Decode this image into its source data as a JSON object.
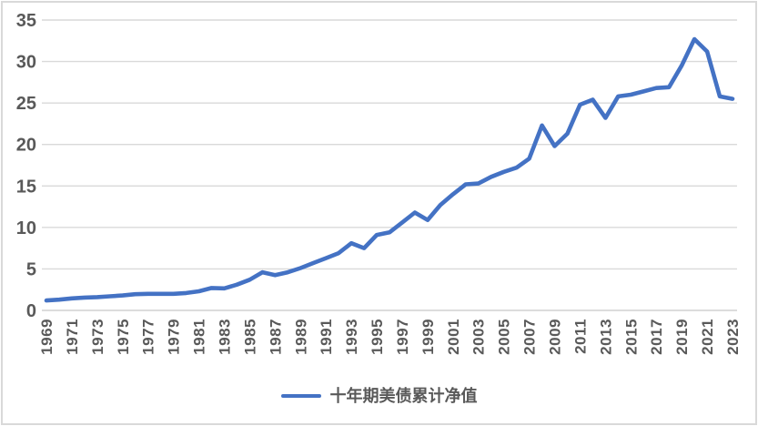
{
  "chart_data": {
    "type": "line",
    "title": "",
    "x": [
      1969,
      1970,
      1971,
      1972,
      1973,
      1974,
      1975,
      1976,
      1977,
      1978,
      1979,
      1980,
      1981,
      1982,
      1983,
      1984,
      1985,
      1986,
      1987,
      1988,
      1989,
      1990,
      1991,
      1992,
      1993,
      1994,
      1995,
      1996,
      1997,
      1998,
      1999,
      2000,
      2001,
      2002,
      2003,
      2004,
      2005,
      2006,
      2007,
      2008,
      2009,
      2010,
      2011,
      2012,
      2013,
      2014,
      2015,
      2016,
      2017,
      2018,
      2019,
      2020,
      2021,
      2022,
      2023
    ],
    "x_tick_labels": [
      "1969",
      "1971",
      "1973",
      "1975",
      "1977",
      "1979",
      "1981",
      "1983",
      "1985",
      "1987",
      "1989",
      "1991",
      "1993",
      "1995",
      "1997",
      "1999",
      "2001",
      "2003",
      "2005",
      "2007",
      "2009",
      "2011",
      "2013",
      "2015",
      "2017",
      "2019",
      "2021",
      "2023"
    ],
    "y_ticks": [
      "0",
      "5",
      "10",
      "15",
      "20",
      "25",
      "30",
      "35"
    ],
    "ylim": [
      0,
      35
    ],
    "grid": "horizontal-only",
    "legend_position": "bottom-center",
    "series": [
      {
        "name": "十年期美债累计净值",
        "values": [
          1.2,
          1.3,
          1.45,
          1.55,
          1.6,
          1.7,
          1.8,
          1.95,
          2.0,
          2.0,
          2.0,
          2.1,
          2.3,
          2.7,
          2.65,
          3.1,
          3.7,
          4.6,
          4.25,
          4.6,
          5.1,
          5.7,
          6.3,
          6.9,
          8.1,
          7.5,
          9.1,
          9.4,
          10.6,
          11.8,
          10.9,
          12.7,
          14.0,
          15.2,
          15.3,
          16.1,
          16.7,
          17.2,
          18.3,
          22.3,
          19.8,
          21.3,
          24.8,
          25.4,
          23.2,
          25.8,
          26.0,
          26.4,
          26.8,
          26.9,
          29.5,
          32.7,
          31.2,
          25.8,
          25.5
        ]
      }
    ],
    "colors": {
      "line": "#4472C4",
      "axis_labels": "#595959",
      "gridlines": "#D9D9D9",
      "axis_line": "#D0D0D0",
      "background": "#FFFFFF",
      "frame_border": "#D9D9D9"
    }
  }
}
